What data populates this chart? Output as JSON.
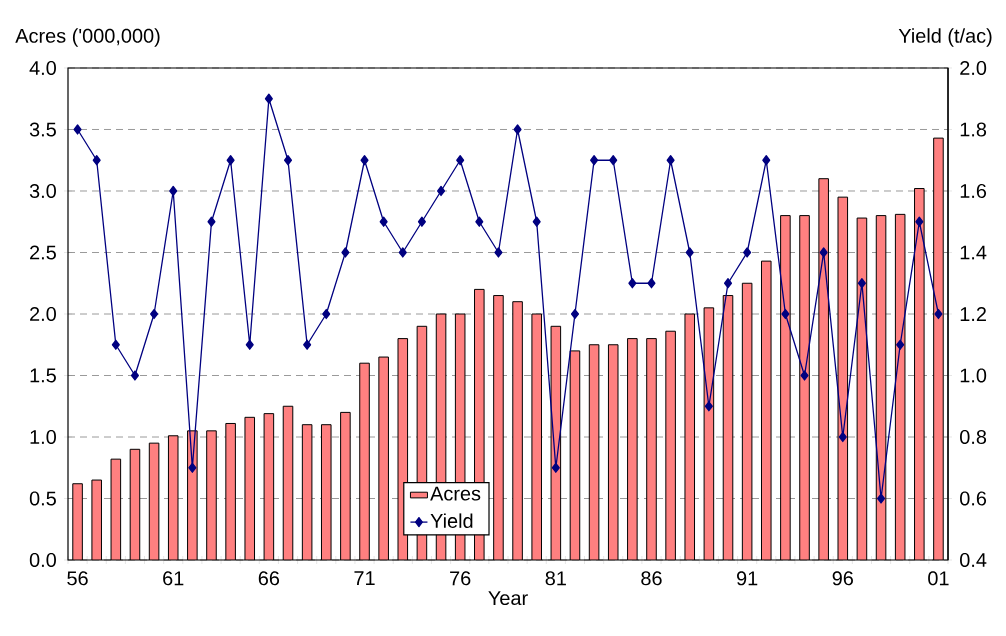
{
  "chart_data": {
    "type": "bar",
    "xlabel": "Year",
    "ylabel": "Acres ('000,000)",
    "y2label": "Yield (t/ac)",
    "categories": [
      "56",
      null,
      null,
      null,
      null,
      "61",
      null,
      null,
      null,
      null,
      "66",
      null,
      null,
      null,
      null,
      "71",
      null,
      null,
      null,
      null,
      "76",
      null,
      null,
      null,
      null,
      "81",
      null,
      null,
      null,
      null,
      "86",
      null,
      null,
      null,
      null,
      "91",
      null,
      null,
      null,
      null,
      "96",
      null,
      null,
      null,
      null,
      "01"
    ],
    "series": [
      {
        "name": "Acres",
        "color": "#ff8080",
        "values": [
          0.62,
          0.65,
          0.82,
          0.9,
          0.95,
          1.01,
          1.05,
          1.05,
          1.11,
          1.16,
          1.19,
          1.25,
          1.1,
          1.1,
          1.2,
          1.6,
          1.65,
          1.8,
          1.9,
          2.0,
          2.0,
          2.2,
          2.15,
          2.1,
          2.0,
          1.9,
          1.7,
          1.75,
          1.75,
          1.8,
          1.8,
          1.86,
          2.0,
          2.05,
          2.15,
          2.25,
          2.43,
          2.8,
          2.8,
          3.1,
          2.95,
          2.78,
          2.8,
          2.81,
          3.02,
          3.43
        ]
      },
      {
        "name": "Yield",
        "type": "line",
        "axis": "y2",
        "marker": "diamond",
        "color": "#000080",
        "values": [
          1.8,
          1.7,
          1.1,
          1.0,
          1.2,
          1.6,
          0.7,
          1.5,
          1.7,
          1.1,
          1.9,
          1.7,
          1.1,
          1.2,
          1.4,
          1.7,
          1.5,
          1.4,
          1.5,
          1.6,
          1.7,
          1.5,
          1.4,
          1.8,
          1.5,
          0.7,
          1.2,
          1.7,
          1.7,
          1.3,
          1.3,
          1.7,
          1.4,
          0.9,
          1.3,
          1.4,
          1.7,
          1.2,
          1.0,
          1.4,
          0.8,
          1.3,
          0.6,
          1.1,
          1.5,
          1.2
        ]
      }
    ],
    "ylim": [
      0,
      4
    ],
    "yticks": [
      {
        "value": 0,
        "label": "0.0"
      },
      {
        "value": 0.5,
        "label": "0.5"
      },
      {
        "value": 1,
        "label": "1.0"
      },
      {
        "value": 1.5,
        "label": "1.5"
      },
      {
        "value": 2,
        "label": "2.0"
      },
      {
        "value": 2.5,
        "label": "2.5"
      },
      {
        "value": 3,
        "label": "3.0"
      },
      {
        "value": 3.5,
        "label": "3.5"
      },
      {
        "value": 4,
        "label": "4.0"
      }
    ],
    "y2lim": [
      0.4,
      2.0
    ],
    "y2ticks": [
      {
        "value": 0.4,
        "label": "0.4"
      },
      {
        "value": 0.6,
        "label": "0.6"
      },
      {
        "value": 0.8,
        "label": "0.8"
      },
      {
        "value": 1.0,
        "label": "1.0"
      },
      {
        "value": 1.2,
        "label": "1.2"
      },
      {
        "value": 1.4,
        "label": "1.4"
      },
      {
        "value": 1.6,
        "label": "1.6"
      },
      {
        "value": 1.8,
        "label": "1.8"
      },
      {
        "value": 2.0,
        "label": "2.0"
      }
    ],
    "grid": "y",
    "legend": "bottom"
  }
}
